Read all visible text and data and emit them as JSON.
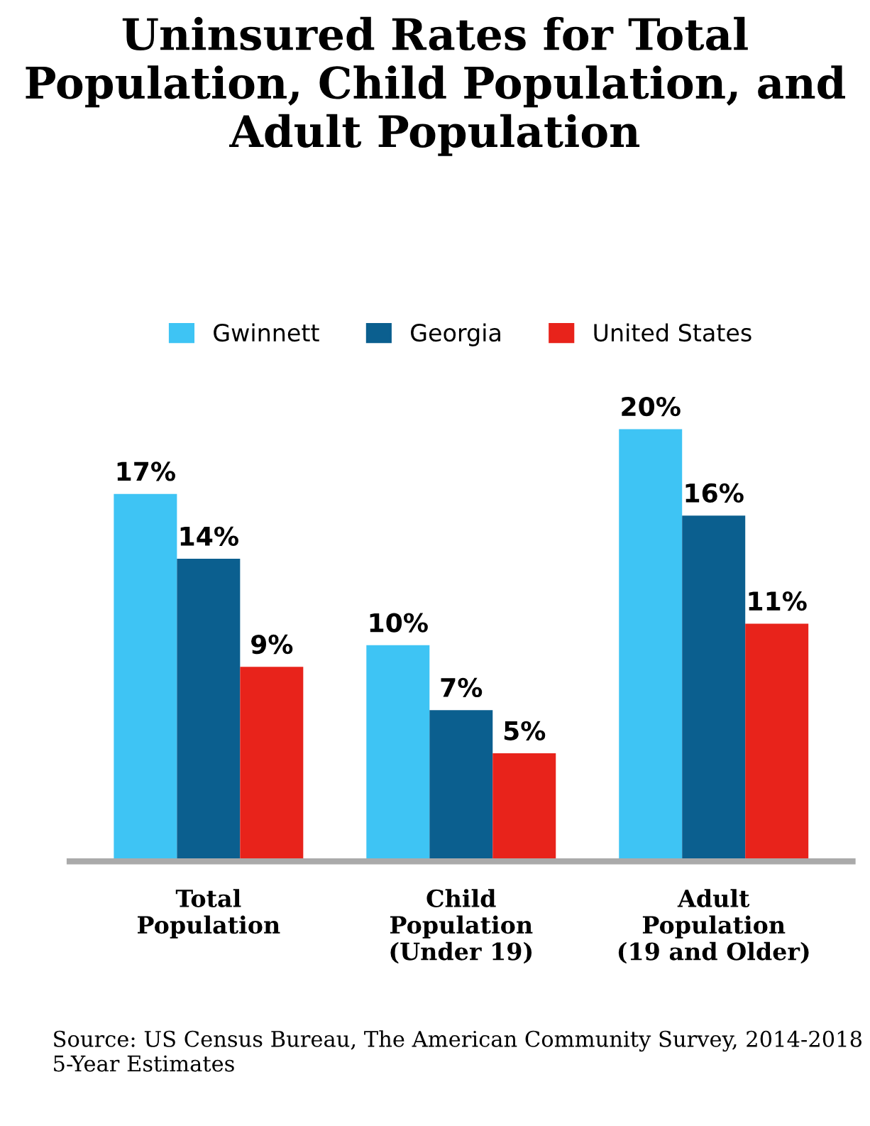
{
  "chart_data": {
    "type": "bar",
    "title": "Uninsured Rates for Total Population, Child Population, and Adult Population",
    "categories": [
      "Total\nPopulation",
      "Child\nPopulation\n(Under 19)",
      "Adult\nPopulation\n(19 and Older)"
    ],
    "series": [
      {
        "name": "Gwinnett",
        "color": "#3ec4f4",
        "values": [
          17,
          10,
          20
        ],
        "value_labels": [
          "17%",
          "10%",
          "20%"
        ]
      },
      {
        "name": "Georgia",
        "color": "#0b5f8f",
        "values": [
          14,
          7,
          16
        ],
        "value_labels": [
          "14%",
          "7%",
          "16%"
        ]
      },
      {
        "name": "United States",
        "color": "#e8231b",
        "values": [
          9,
          5,
          11
        ],
        "value_labels": [
          "9%",
          "5%",
          "11%"
        ]
      }
    ],
    "legend": "top",
    "grid": false,
    "annotations": [
      "Source: US Census Bureau, The American Community Survey, 2014-2018 5-Year Estimates"
    ]
  }
}
